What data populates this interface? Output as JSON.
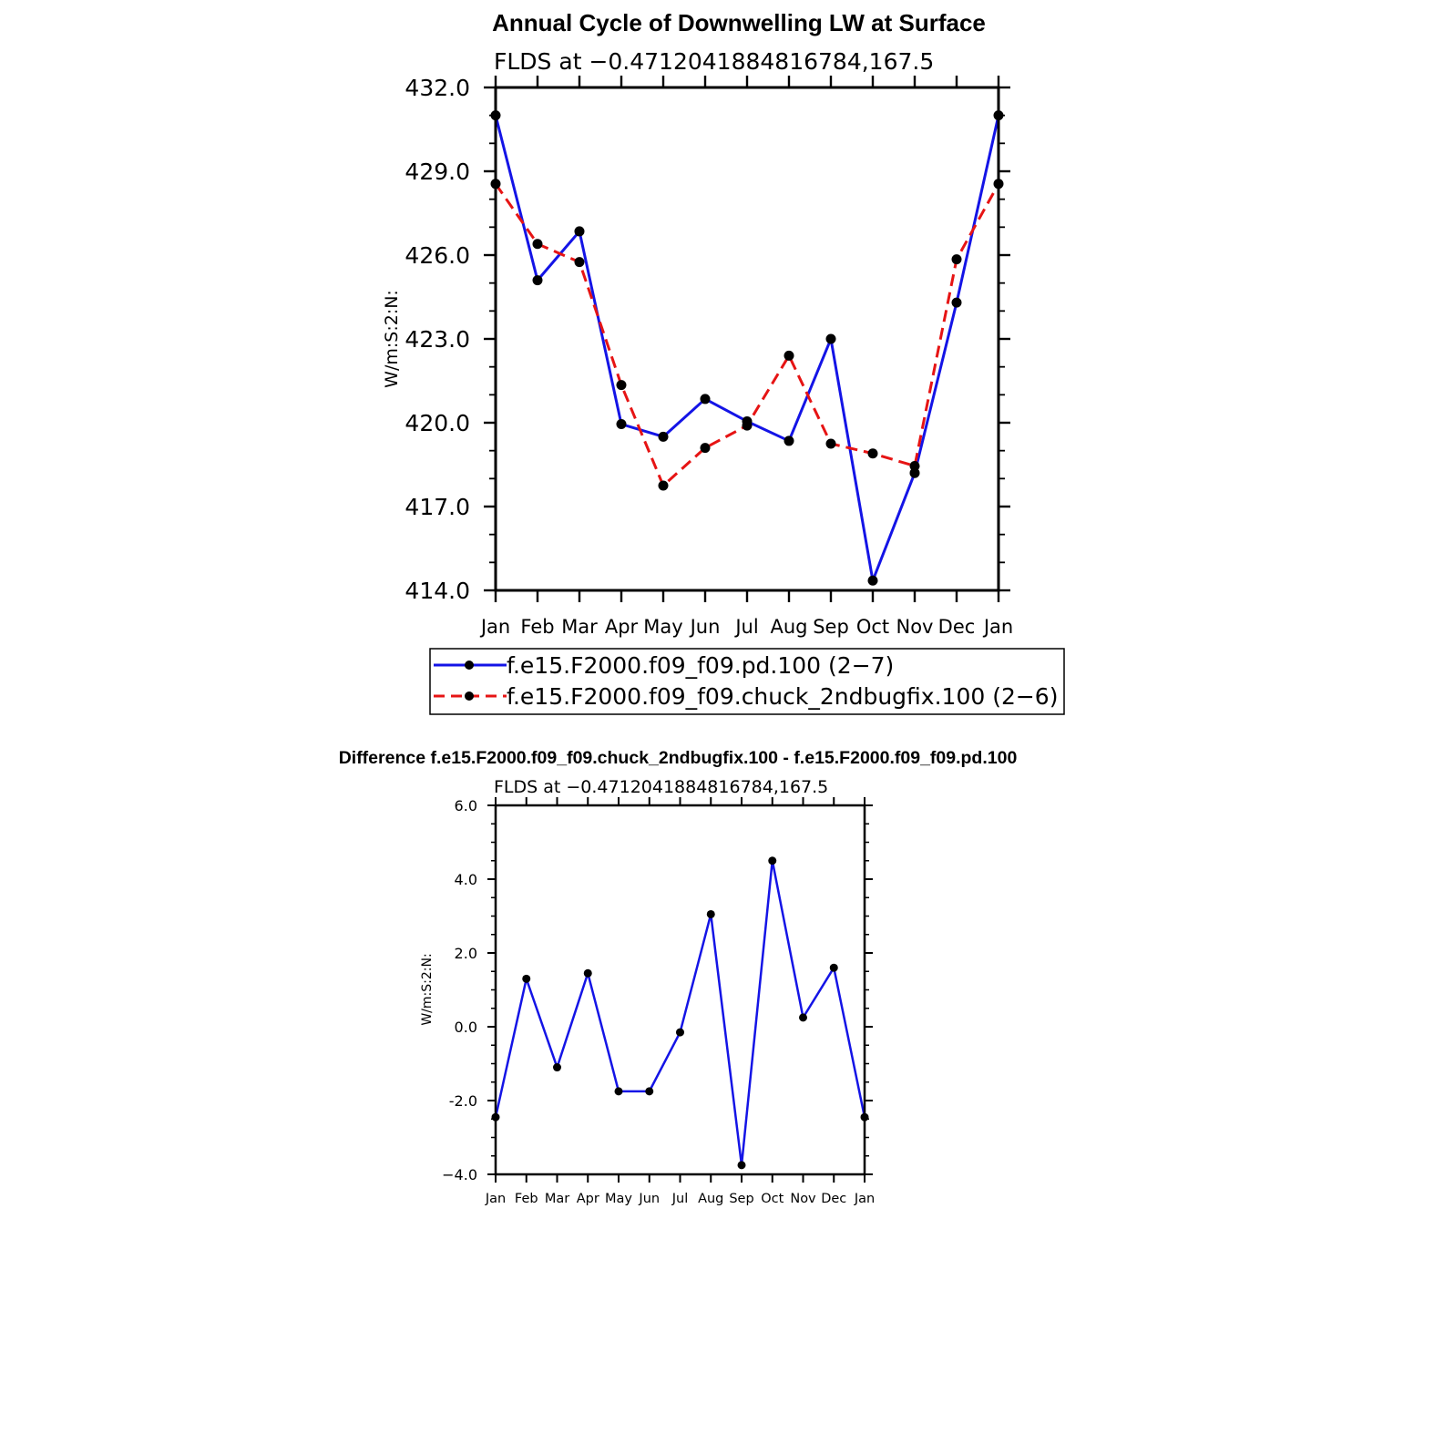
{
  "chart_data": [
    {
      "type": "line",
      "title": "Annual Cycle of Downwelling LW at Surface",
      "subtitle": "FLDS at −0.4712041884816784,167.5",
      "ylabel": "W/m:S:2:N:",
      "xlabel": "",
      "categories": [
        "Jan",
        "Feb",
        "Mar",
        "Apr",
        "May",
        "Jun",
        "Jul",
        "Aug",
        "Sep",
        "Oct",
        "Nov",
        "Dec",
        "Jan"
      ],
      "ylim": [
        414.0,
        432.0
      ],
      "yticks": [
        "414.0",
        "417.0",
        "420.0",
        "423.0",
        "426.0",
        "429.0",
        "432.0"
      ],
      "grid": false,
      "legend_position": "bottom",
      "series": [
        {
          "name": "f.e15.F2000.f09_f09.pd.100 (2−7)",
          "color": "#1414e6",
          "dash": "solid",
          "values": [
            431.0,
            425.1,
            426.85,
            419.95,
            419.5,
            420.85,
            420.05,
            419.35,
            423.0,
            414.35,
            418.2,
            424.3,
            431.0
          ]
        },
        {
          "name": "f.e15.F2000.f09_f09.chuck_2ndbugfix.100 (2−6)",
          "color": "#e61414",
          "dash": "dashed",
          "values": [
            428.55,
            426.4,
            425.75,
            421.35,
            417.75,
            419.1,
            419.9,
            422.4,
            419.25,
            418.9,
            418.45,
            425.85,
            428.55
          ]
        }
      ]
    },
    {
      "type": "line",
      "title": "Difference f.e15.F2000.f09_f09.chuck_2ndbugfix.100 - f.e15.F2000.f09_f09.pd.100",
      "subtitle": "FLDS at −0.4712041884816784,167.5",
      "ylabel": "W/m:S:2:N:",
      "xlabel": "",
      "categories": [
        "Jan",
        "Feb",
        "Mar",
        "Apr",
        "May",
        "Jun",
        "Jul",
        "Aug",
        "Sep",
        "Oct",
        "Nov",
        "Dec",
        "Jan"
      ],
      "ylim": [
        -4.0,
        6.0
      ],
      "yticks": [
        "−4.0",
        "-2.0",
        "0.0",
        "2.0",
        "4.0",
        "6.0"
      ],
      "grid": false,
      "series": [
        {
          "color": "#1414e6",
          "dash": "solid",
          "values": [
            -2.45,
            1.3,
            -1.1,
            1.45,
            -1.75,
            -1.75,
            -0.15,
            3.05,
            -3.75,
            4.5,
            0.25,
            1.6,
            -2.45
          ]
        }
      ]
    }
  ]
}
